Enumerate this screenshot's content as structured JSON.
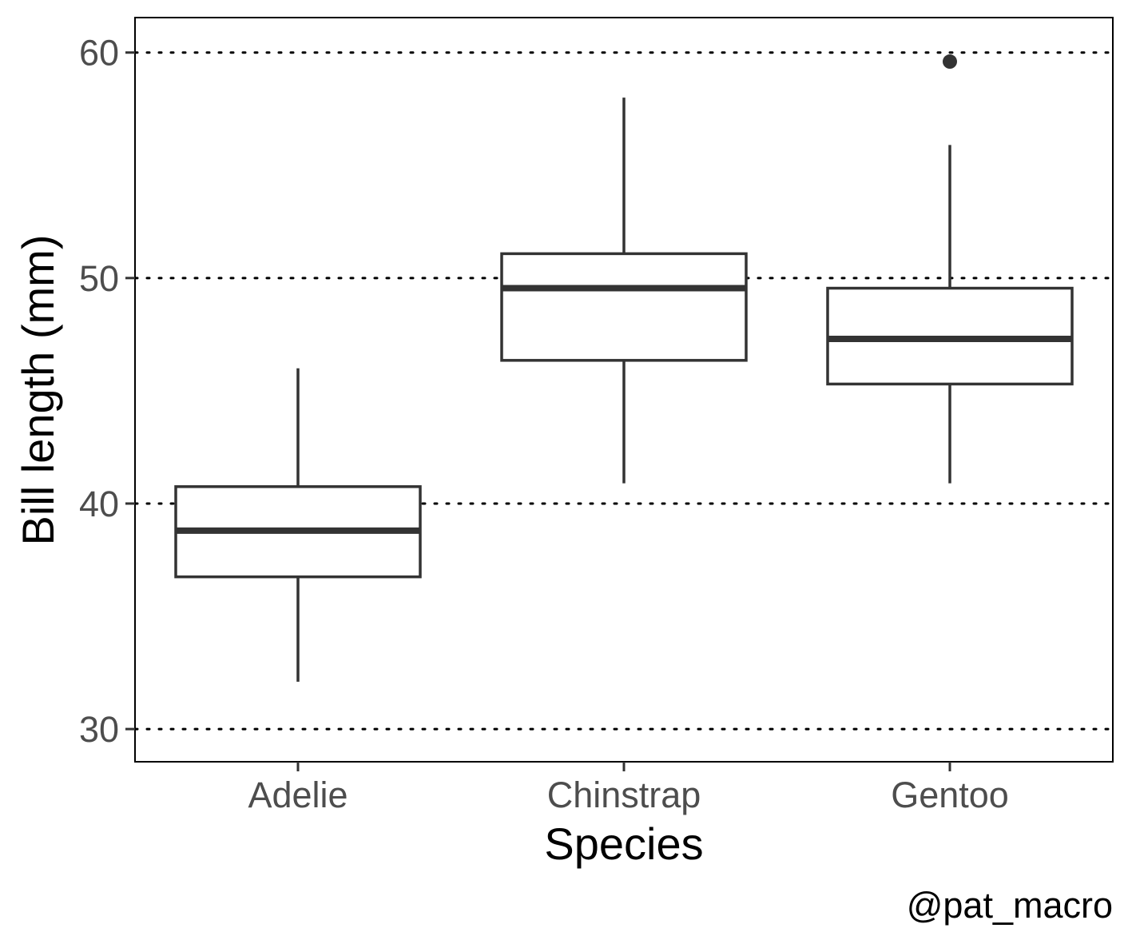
{
  "chart_data": {
    "type": "boxplot",
    "xlabel": "Species",
    "ylabel": "Bill length (mm)",
    "caption": "@pat_macro",
    "categories": [
      "Adelie",
      "Chinstrap",
      "Gentoo"
    ],
    "boxes": [
      {
        "category": "Adelie",
        "whisker_low": 32.1,
        "q1": 36.75,
        "median": 38.8,
        "q3": 40.75,
        "whisker_high": 46.0,
        "outliers": []
      },
      {
        "category": "Chinstrap",
        "whisker_low": 40.9,
        "q1": 46.35,
        "median": 49.55,
        "q3": 51.08,
        "whisker_high": 58.0,
        "outliers": []
      },
      {
        "category": "Gentoo",
        "whisker_low": 40.9,
        "q1": 45.3,
        "median": 47.3,
        "q3": 49.55,
        "whisker_high": 55.9,
        "outliers": [
          59.6
        ]
      }
    ],
    "y_ticks": [
      30,
      40,
      50,
      60
    ],
    "ylim": [
      28.55,
      61.55
    ],
    "grid": {
      "major_y": "dotted",
      "minor_y": "white-solid",
      "x": "none"
    },
    "colors": {
      "box_stroke": "#333333",
      "grid": "#000000",
      "panel_border": "#000000",
      "tick_text": "#4d4d4d",
      "background": "#ffffff"
    }
  }
}
